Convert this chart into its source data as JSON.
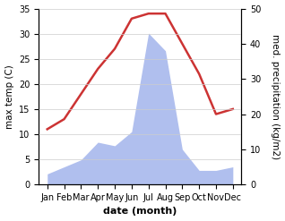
{
  "months": [
    "Jan",
    "Feb",
    "Mar",
    "Apr",
    "May",
    "Jun",
    "Jul",
    "Aug",
    "Sep",
    "Oct",
    "Nov",
    "Dec"
  ],
  "temperature": [
    11,
    13,
    18,
    23,
    27,
    33,
    34,
    34,
    28,
    22,
    14,
    15
  ],
  "precipitation": [
    3,
    5,
    7,
    12,
    11,
    15,
    43,
    38,
    10,
    4,
    4,
    5
  ],
  "temp_color": "#cc3333",
  "precip_color": "#b0bfee",
  "title": "",
  "xlabel": "date (month)",
  "ylabel_left": "max temp (C)",
  "ylabel_right": "med. precipitation (kg/m2)",
  "ylim_left": [
    0,
    35
  ],
  "ylim_right": [
    0,
    50
  ],
  "yticks_left": [
    0,
    5,
    10,
    15,
    20,
    25,
    30,
    35
  ],
  "yticks_right": [
    0,
    10,
    20,
    30,
    40,
    50
  ],
  "bg_color": "#ffffff",
  "temp_linewidth": 1.8,
  "xlabel_fontsize": 8,
  "xlabel_fontweight": "bold",
  "ylabel_fontsize": 7.5,
  "tick_fontsize": 7
}
